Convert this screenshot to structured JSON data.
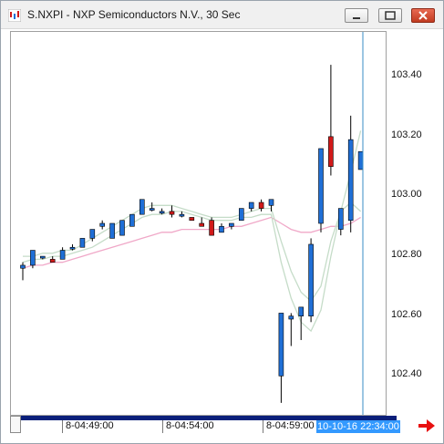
{
  "window": {
    "title": "S.NXPI - NXP Semiconductors N.V., 30 Sec",
    "icons": [
      "app-chart-icon",
      "minimize-icon",
      "maximize-icon",
      "close-icon"
    ],
    "colors": {
      "up": "#1f6fd6",
      "down": "#d11919",
      "fast_ma": "#c5dcc8",
      "slow_ma": "#f0a8c8",
      "cursor": "#3a8cc4",
      "scrollbar": "#0a1f7a",
      "time_highlight": "#3399ff",
      "arrow": "#e81010"
    }
  },
  "price_axis": {
    "labels": [
      "103.40",
      "103.20",
      "103.00",
      "102.80",
      "102.60",
      "102.40"
    ]
  },
  "time_axis": {
    "labels": [
      "8-04:49:00",
      "8-04:54:00",
      "8-04:59:00"
    ],
    "current": "10-10-16 22:34:00"
  },
  "chart_data": {
    "type": "candlestick",
    "ylim": [
      102.27,
      103.55
    ],
    "candles": [
      {
        "o": 102.76,
        "h": 102.78,
        "l": 102.72,
        "c": 102.77
      },
      {
        "o": 102.77,
        "h": 102.82,
        "l": 102.76,
        "c": 102.82
      },
      {
        "o": 102.8,
        "h": 102.8,
        "l": 102.79,
        "c": 102.8
      },
      {
        "o": 102.79,
        "h": 102.8,
        "l": 102.78,
        "c": 102.78
      },
      {
        "o": 102.79,
        "h": 102.83,
        "l": 102.79,
        "c": 102.82
      },
      {
        "o": 102.83,
        "h": 102.84,
        "l": 102.82,
        "c": 102.83
      },
      {
        "o": 102.83,
        "h": 102.86,
        "l": 102.83,
        "c": 102.86
      },
      {
        "o": 102.86,
        "h": 102.89,
        "l": 102.85,
        "c": 102.89
      },
      {
        "o": 102.9,
        "h": 102.92,
        "l": 102.89,
        "c": 102.91
      },
      {
        "o": 102.86,
        "h": 102.91,
        "l": 102.86,
        "c": 102.91
      },
      {
        "o": 102.87,
        "h": 102.92,
        "l": 102.87,
        "c": 102.92
      },
      {
        "o": 102.9,
        "h": 102.94,
        "l": 102.9,
        "c": 102.94
      },
      {
        "o": 102.94,
        "h": 102.99,
        "l": 102.94,
        "c": 102.99
      },
      {
        "o": 102.96,
        "h": 102.98,
        "l": 102.95,
        "c": 102.96
      },
      {
        "o": 102.95,
        "h": 102.96,
        "l": 102.94,
        "c": 102.95
      },
      {
        "o": 102.95,
        "h": 102.97,
        "l": 102.93,
        "c": 102.94
      },
      {
        "o": 102.94,
        "h": 102.95,
        "l": 102.93,
        "c": 102.94
      },
      {
        "o": 102.93,
        "h": 102.93,
        "l": 102.92,
        "c": 102.92
      },
      {
        "o": 102.91,
        "h": 102.93,
        "l": 102.9,
        "c": 102.9
      },
      {
        "o": 102.92,
        "h": 102.93,
        "l": 102.87,
        "c": 102.87
      },
      {
        "o": 102.88,
        "h": 102.91,
        "l": 102.88,
        "c": 102.9
      },
      {
        "o": 102.9,
        "h": 102.91,
        "l": 102.89,
        "c": 102.91
      },
      {
        "o": 102.92,
        "h": 102.96,
        "l": 102.92,
        "c": 102.96
      },
      {
        "o": 102.96,
        "h": 102.98,
        "l": 102.95,
        "c": 102.98
      },
      {
        "o": 102.98,
        "h": 102.99,
        "l": 102.95,
        "c": 102.96
      },
      {
        "o": 102.97,
        "h": 102.99,
        "l": 102.95,
        "c": 102.99
      },
      {
        "o": 102.4,
        "h": 102.61,
        "l": 102.31,
        "c": 102.61
      },
      {
        "o": 102.59,
        "h": 102.61,
        "l": 102.5,
        "c": 102.6
      },
      {
        "o": 102.6,
        "h": 102.63,
        "l": 102.52,
        "c": 102.63
      },
      {
        "o": 102.6,
        "h": 102.86,
        "l": 102.58,
        "c": 102.84
      },
      {
        "o": 102.91,
        "h": 103.16,
        "l": 102.88,
        "c": 103.16
      },
      {
        "o": 103.2,
        "h": 103.44,
        "l": 103.07,
        "c": 103.1
      },
      {
        "o": 102.89,
        "h": 102.96,
        "l": 102.87,
        "c": 102.96
      },
      {
        "o": 102.92,
        "h": 103.27,
        "l": 102.88,
        "c": 103.19
      },
      {
        "o": 103.09,
        "h": 103.15,
        "l": 103.09,
        "c": 103.15
      }
    ],
    "fast_ma": [
      102.8,
      102.8,
      102.81,
      102.81,
      102.82,
      102.82,
      102.84,
      102.86,
      102.88,
      102.9,
      102.92,
      102.94,
      102.96,
      102.97,
      102.97,
      102.97,
      102.96,
      102.95,
      102.94,
      102.93,
      102.93,
      102.93,
      102.94,
      102.95,
      102.96,
      102.96,
      102.85,
      102.75,
      102.68,
      102.65,
      102.7,
      102.85,
      102.95,
      102.98,
      102.95
    ],
    "mid_ma": [
      102.78,
      102.79,
      102.79,
      102.8,
      102.8,
      102.81,
      102.82,
      102.83,
      102.85,
      102.87,
      102.89,
      102.91,
      102.93,
      102.94,
      102.94,
      102.95,
      102.95,
      102.94,
      102.93,
      102.92,
      102.92,
      102.92,
      102.93,
      102.93,
      102.94,
      102.94,
      102.78,
      102.66,
      102.58,
      102.55,
      102.62,
      102.8,
      102.95,
      103.08,
      103.22
    ],
    "slow_ma": [
      102.76,
      102.77,
      102.77,
      102.78,
      102.78,
      102.79,
      102.8,
      102.81,
      102.82,
      102.83,
      102.84,
      102.85,
      102.86,
      102.87,
      102.88,
      102.88,
      102.89,
      102.89,
      102.89,
      102.89,
      102.89,
      102.9,
      102.9,
      102.91,
      102.92,
      102.93,
      102.91,
      102.89,
      102.88,
      102.88,
      102.89,
      102.9,
      102.9,
      102.91,
      102.93
    ]
  }
}
